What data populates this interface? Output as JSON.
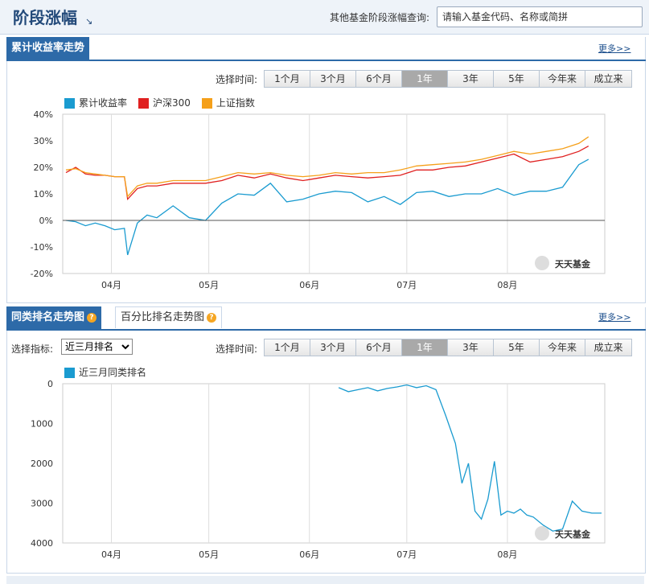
{
  "header": {
    "title": "阶段涨幅",
    "search_label": "其他基金阶段涨幅查询:",
    "search_placeholder": "请输入基金代码、名称或简拼"
  },
  "section1": {
    "tab": "累计收益率走势",
    "more": "更多>>",
    "range_label": "选择时间:",
    "ranges": [
      "1个月",
      "3个月",
      "6个月",
      "1年",
      "3年",
      "5年",
      "今年来",
      "成立来"
    ],
    "active_range": "1年",
    "legend": [
      {
        "label": "累计收益率",
        "color": "#1a9bd0"
      },
      {
        "label": "沪深300",
        "color": "#e02020"
      },
      {
        "label": "上证指数",
        "color": "#f5a01a"
      }
    ],
    "watermark": "天天基金"
  },
  "section2": {
    "tab": "同类排名走势图",
    "tab2": "百分比排名走势图",
    "more": "更多>>",
    "indicator_label": "选择指标:",
    "indicator_value": "近三月排名",
    "range_label": "选择时间:",
    "ranges": [
      "1个月",
      "3个月",
      "6个月",
      "1年",
      "3年",
      "5年",
      "今年来",
      "成立来"
    ],
    "active_range": "1年",
    "legend": [
      {
        "label": "近三月同类排名",
        "color": "#1a9bd0"
      }
    ],
    "watermark": "天天基金"
  },
  "chart_data": [
    {
      "type": "line",
      "title": "累计收益率走势",
      "ylabel": "",
      "xlabel": "",
      "ylim": [
        -20,
        40
      ],
      "y_ticks": [
        "40%",
        "30%",
        "20%",
        "10%",
        "0%",
        "-10%",
        "-20%"
      ],
      "x_ticks": [
        "04月",
        "05月",
        "06月",
        "07月",
        "08月"
      ],
      "x": [
        "03-18",
        "03-21",
        "03-24",
        "03-27",
        "03-30",
        "04-02",
        "04-05",
        "04-06",
        "04-09",
        "04-12",
        "04-15",
        "04-20",
        "04-25",
        "04-30",
        "05-05",
        "05-10",
        "05-15",
        "05-20",
        "05-25",
        "05-30",
        "06-04",
        "06-09",
        "06-14",
        "06-19",
        "06-24",
        "06-29",
        "07-04",
        "07-09",
        "07-14",
        "07-19",
        "07-24",
        "07-29",
        "08-03",
        "08-08",
        "08-13",
        "08-18",
        "08-23",
        "08-26"
      ],
      "series": [
        {
          "name": "累计收益率",
          "color": "#1a9bd0",
          "values": [
            0,
            -0.5,
            -2,
            -1,
            -2,
            -3.5,
            -3,
            -13,
            -1,
            2,
            1,
            5.5,
            1,
            0,
            6.5,
            10,
            9.5,
            14,
            7,
            8,
            10,
            11,
            10.5,
            7,
            9,
            6,
            10.5,
            11,
            9,
            10,
            10,
            12,
            9.5,
            11,
            11,
            12.5,
            21,
            23
          ]
        },
        {
          "name": "沪深300",
          "color": "#e02020",
          "values": [
            18,
            20,
            17.5,
            17,
            17,
            16.5,
            16.5,
            8,
            12,
            13,
            13,
            14,
            14,
            14,
            15,
            17,
            16,
            17.5,
            16,
            15,
            16,
            17,
            16.5,
            16,
            16.5,
            17,
            19,
            19,
            20,
            20.5,
            22,
            23.5,
            25,
            22,
            23,
            24,
            26,
            28
          ]
        },
        {
          "name": "上证指数",
          "color": "#f5a01a",
          "values": [
            19,
            19.5,
            18,
            17.5,
            17,
            16.5,
            16.5,
            9,
            13,
            14,
            14,
            15,
            15,
            15,
            16.5,
            18,
            17.5,
            18,
            17,
            16.5,
            17,
            18,
            17.5,
            18,
            18,
            19,
            20.5,
            21,
            21.5,
            22,
            23,
            24.5,
            26,
            25,
            26,
            27,
            29,
            31.5
          ]
        }
      ]
    },
    {
      "type": "line",
      "title": "同类排名走势图",
      "ylabel": "",
      "xlabel": "",
      "ylim": [
        0,
        4000
      ],
      "y_reversed": true,
      "y_ticks": [
        "0",
        "1000",
        "2000",
        "3000",
        "4000"
      ],
      "x_ticks": [
        "04月",
        "05月",
        "06月",
        "07月",
        "08月"
      ],
      "x": [
        "06-10",
        "06-13",
        "06-16",
        "06-19",
        "06-22",
        "06-25",
        "06-28",
        "07-01",
        "07-04",
        "07-07",
        "07-10",
        "07-13",
        "07-16",
        "07-18",
        "07-20",
        "07-22",
        "07-24",
        "07-26",
        "07-28",
        "07-30",
        "08-01",
        "08-03",
        "08-05",
        "08-07",
        "08-09",
        "08-12",
        "08-15",
        "08-18",
        "08-21",
        "08-24",
        "08-27",
        "08-30"
      ],
      "series": [
        {
          "name": "近三月同类排名",
          "color": "#1a9bd0",
          "values": [
            100,
            200,
            150,
            100,
            180,
            120,
            80,
            30,
            100,
            50,
            150,
            800,
            1500,
            2500,
            2000,
            3200,
            3400,
            2900,
            1950,
            3300,
            3200,
            3250,
            3150,
            3300,
            3350,
            3550,
            3700,
            3650,
            2950,
            3200,
            3250,
            3250
          ]
        }
      ]
    }
  ]
}
